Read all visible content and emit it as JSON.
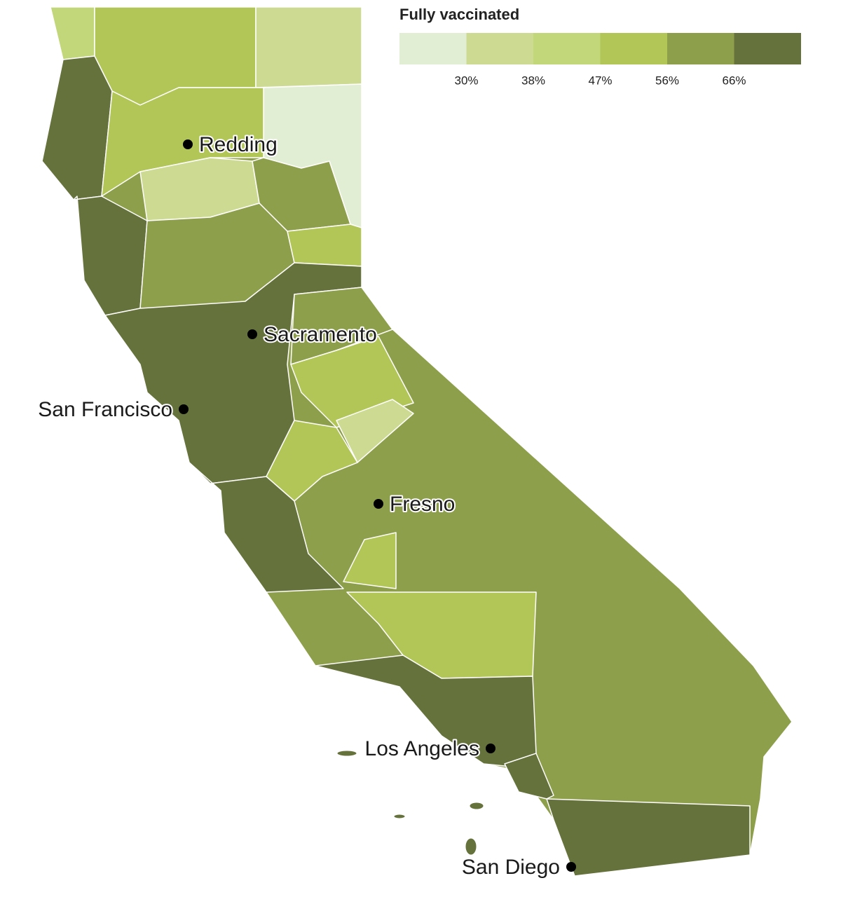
{
  "legend": {
    "title": "Fully vaccinated",
    "colors": [
      "#e2eed3",
      "#cddb92",
      "#c2d67a",
      "#b1c656",
      "#8e9f4b",
      "#65723b"
    ],
    "ticks": [
      {
        "value": 30,
        "label": "30%"
      },
      {
        "value": 38,
        "label": "38%"
      },
      {
        "value": 47,
        "label": "47%"
      },
      {
        "value": 56,
        "label": "56%"
      },
      {
        "value": 66,
        "label": "66%"
      }
    ]
  },
  "regions": [
    {
      "color": "#8e9f4b"
    },
    {
      "color": "#c2d67a"
    },
    {
      "color": "#b1c656"
    },
    {
      "color": "#cddb92"
    },
    {
      "color": "#e2eed3"
    },
    {
      "color": "#65723b"
    },
    {
      "color": "#b1c656"
    },
    {
      "color": "#cddb92"
    },
    {
      "color": "#8e9f4b"
    },
    {
      "color": "#65723b"
    },
    {
      "color": "#8e9f4b"
    },
    {
      "color": "#b1c656"
    },
    {
      "color": "#65723b"
    },
    {
      "color": "#8e9f4b"
    },
    {
      "color": "#b1c656"
    },
    {
      "color": "#cddb92"
    },
    {
      "color": "#b1c656"
    },
    {
      "color": "#65723b"
    },
    {
      "color": "#b1c656"
    },
    {
      "color": "#b1c656"
    },
    {
      "color": "#65723b"
    },
    {
      "color": "#65723b"
    },
    {
      "color": "#65723b"
    }
  ],
  "cities": [
    {
      "name": "Redding"
    },
    {
      "name": "Sacramento"
    },
    {
      "name": "San Francisco"
    },
    {
      "name": "Fresno"
    },
    {
      "name": "Los Angeles"
    },
    {
      "name": "San Diego"
    }
  ]
}
